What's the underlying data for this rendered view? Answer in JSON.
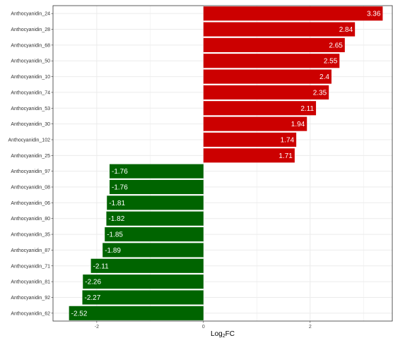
{
  "chart_data": {
    "type": "bar",
    "orientation": "horizontal",
    "categories": [
      "Anthocyanidin_24",
      "Anthocyanidin_28",
      "Anthocyanidin_68",
      "Anthocyanidin_50",
      "Anthocyanidin_10",
      "Anthocyanidin_74",
      "Anthocyanidin_53",
      "Anthocyanidin_30",
      "Anthocyanidin_102",
      "Anthocyanidin_25",
      "Anthocyanidin_97",
      "Anthocyanidin_08",
      "Anthocyanidin_06",
      "Anthocyanidin_80",
      "Anthocyanidin_35",
      "Anthocyanidin_87",
      "Anthocyanidin_71",
      "Anthocyanidin_81",
      "Anthocyanidin_92",
      "Anthocyanidin_62"
    ],
    "values": [
      3.36,
      2.84,
      2.65,
      2.55,
      2.4,
      2.35,
      2.11,
      1.94,
      1.74,
      1.71,
      -1.76,
      -1.76,
      -1.81,
      -1.82,
      -1.85,
      -1.89,
      -2.11,
      -2.26,
      -2.27,
      -2.52
    ],
    "value_labels": [
      "3.36",
      "2.84",
      "2.65",
      "2.55",
      "2.4",
      "2.35",
      "2.11",
      "1.94",
      "1.74",
      "1.71",
      "-1.76",
      "-1.76",
      "-1.81",
      "-1.82",
      "-1.85",
      "-1.89",
      "-2.11",
      "-2.26",
      "-2.27",
      "-2.52"
    ],
    "xlabel_main": "Log",
    "xlabel_sub": "2",
    "xlabel_tail": "FC",
    "xlim": [
      -2.82,
      3.54
    ],
    "xticks": [
      -2,
      0,
      2
    ],
    "xtick_labels": [
      "-2",
      "0",
      "2"
    ],
    "grid": true,
    "legend": "none",
    "colors": {
      "positive": "#cc0000",
      "negative": "#006400",
      "grid": "#ebebeb",
      "panel_border": "#333333"
    }
  }
}
